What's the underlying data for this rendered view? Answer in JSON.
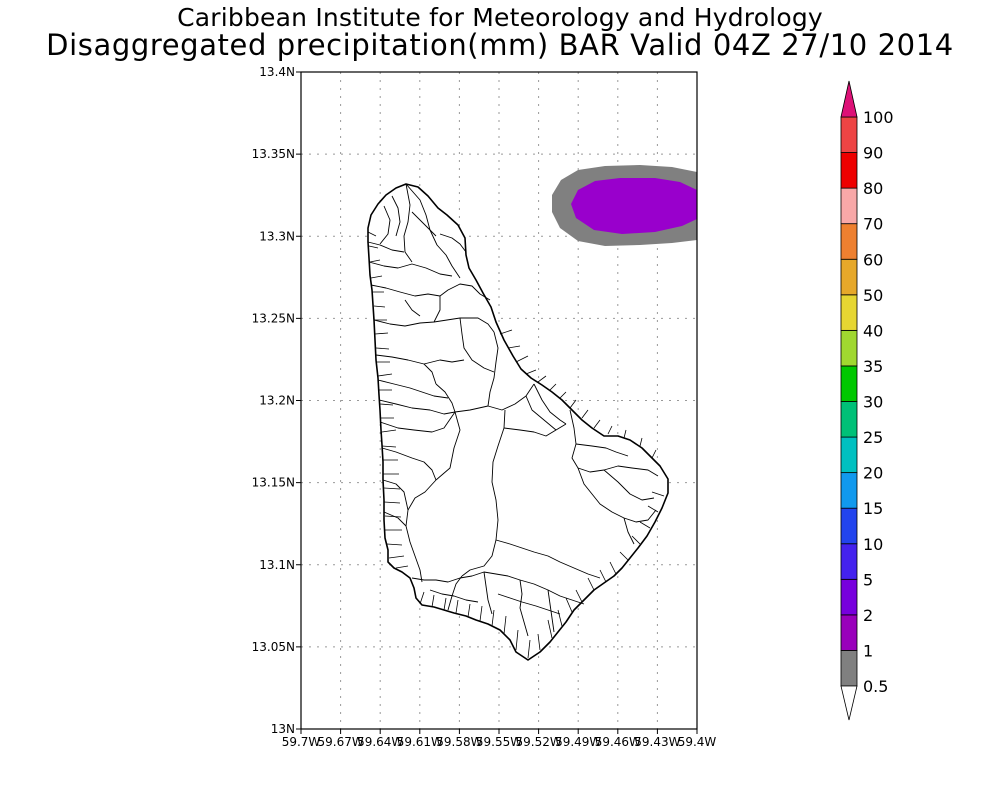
{
  "header": {
    "title_line1": "Caribbean Institute for Meteorology and Hydrology",
    "title_line2": "Disaggregated precipitation(mm) BAR Valid 04Z 27/10 2014"
  },
  "map": {
    "region": "BAR",
    "lat_range": [
      13.0,
      13.4
    ],
    "lon_range": [
      -59.7,
      -59.4
    ],
    "y_tick_labels": [
      "13N",
      "13.05N",
      "13.1N",
      "13.15N",
      "13.2N",
      "13.25N",
      "13.3N",
      "13.35N",
      "13.4N"
    ],
    "x_tick_labels": [
      "59.7W",
      "59.67W",
      "59.64W",
      "59.61W",
      "59.58W",
      "59.55W",
      "59.52W",
      "59.49W",
      "59.46W",
      "59.43W",
      "59.4W"
    ],
    "grid": "dotted",
    "precip_features": [
      {
        "band": "0.5-1",
        "color": "#808080"
      },
      {
        "band": "1-2",
        "color": "#9900cc"
      }
    ]
  },
  "colorbar": {
    "levels": [
      {
        "label": "0.5",
        "color": "#ffffff"
      },
      {
        "label": "1",
        "color": "#808080"
      },
      {
        "label": "2",
        "color": "#9900bb"
      },
      {
        "label": "5",
        "color": "#7700dd"
      },
      {
        "label": "10",
        "color": "#4422ee"
      },
      {
        "label": "15",
        "color": "#2244ee"
      },
      {
        "label": "20",
        "color": "#1199ee"
      },
      {
        "label": "25",
        "color": "#00c0c0"
      },
      {
        "label": "30",
        "color": "#00c077"
      },
      {
        "label": "35",
        "color": "#00c800"
      },
      {
        "label": "40",
        "color": "#a0d830"
      },
      {
        "label": "50",
        "color": "#e6d632"
      },
      {
        "label": "60",
        "color": "#e6a82a"
      },
      {
        "label": "70",
        "color": "#ee8030"
      },
      {
        "label": "80",
        "color": "#f8a8a8"
      },
      {
        "label": "90",
        "color": "#ee0000"
      },
      {
        "label": "100",
        "color": "#ee4444"
      }
    ],
    "max_arrow_color": "#dd1177"
  }
}
